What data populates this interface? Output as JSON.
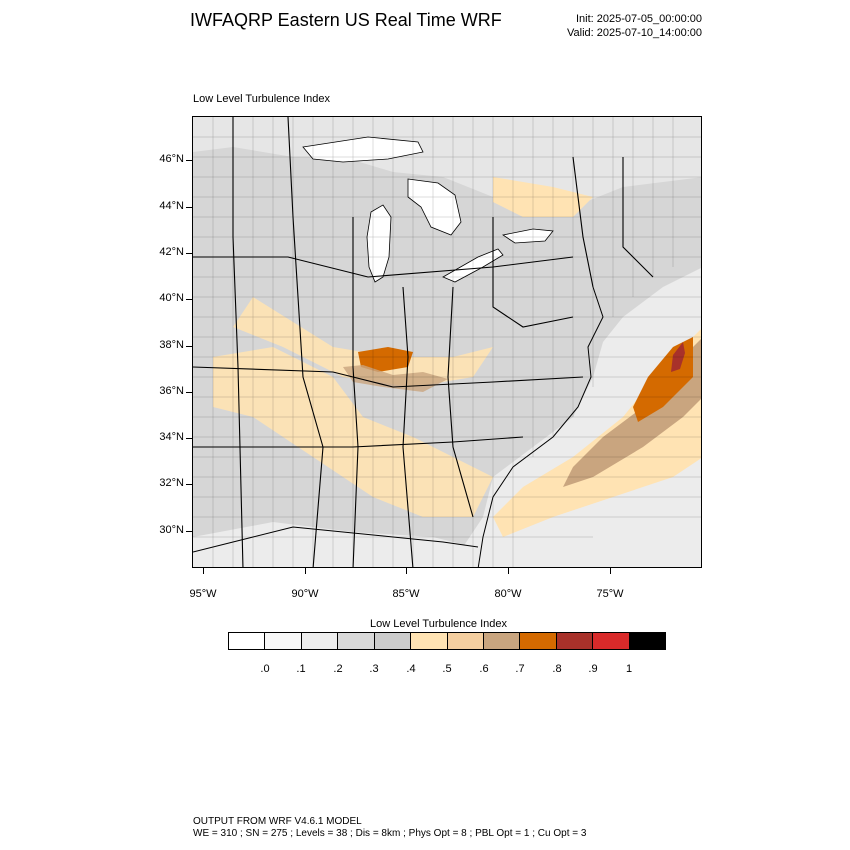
{
  "header": {
    "title": "IWFAQRP Eastern US Real Time WRF",
    "init": "Init: 2025-07-05_00:00:00",
    "valid": "Valid: 2025-07-10_14:00:00"
  },
  "map": {
    "field_label": "Low Level Turbulence Index",
    "lat_labels": [
      "46°N",
      "44°N",
      "42°N",
      "40°N",
      "38°N",
      "36°N",
      "34°N",
      "32°N",
      "30°N"
    ],
    "lon_labels": [
      "95°W",
      "90°W",
      "85°W",
      "80°W",
      "75°W"
    ]
  },
  "colorbar": {
    "title": "Low Level Turbulence Index",
    "colors": [
      "#ffffff",
      "#f7f7f7",
      "#ededed",
      "#d9d9d9",
      "#cccccc",
      "#ffe3b3",
      "#f5cfa0",
      "#c9a57f",
      "#d46a00",
      "#a8312a",
      "#d92a2a",
      "#000000"
    ],
    "labels": [
      ".0",
      ".1",
      ".2",
      ".3",
      ".4",
      ".5",
      ".6",
      ".7",
      ".8",
      ".9",
      "1"
    ]
  },
  "footer": {
    "line1": "OUTPUT FROM WRF V4.6.1 MODEL",
    "line2": "WE = 310 ; SN = 275 ; Levels = 38 ; Dis = 8km ; Phys Opt = 8 ; PBL Opt = 1 ; Cu Opt = 3"
  }
}
